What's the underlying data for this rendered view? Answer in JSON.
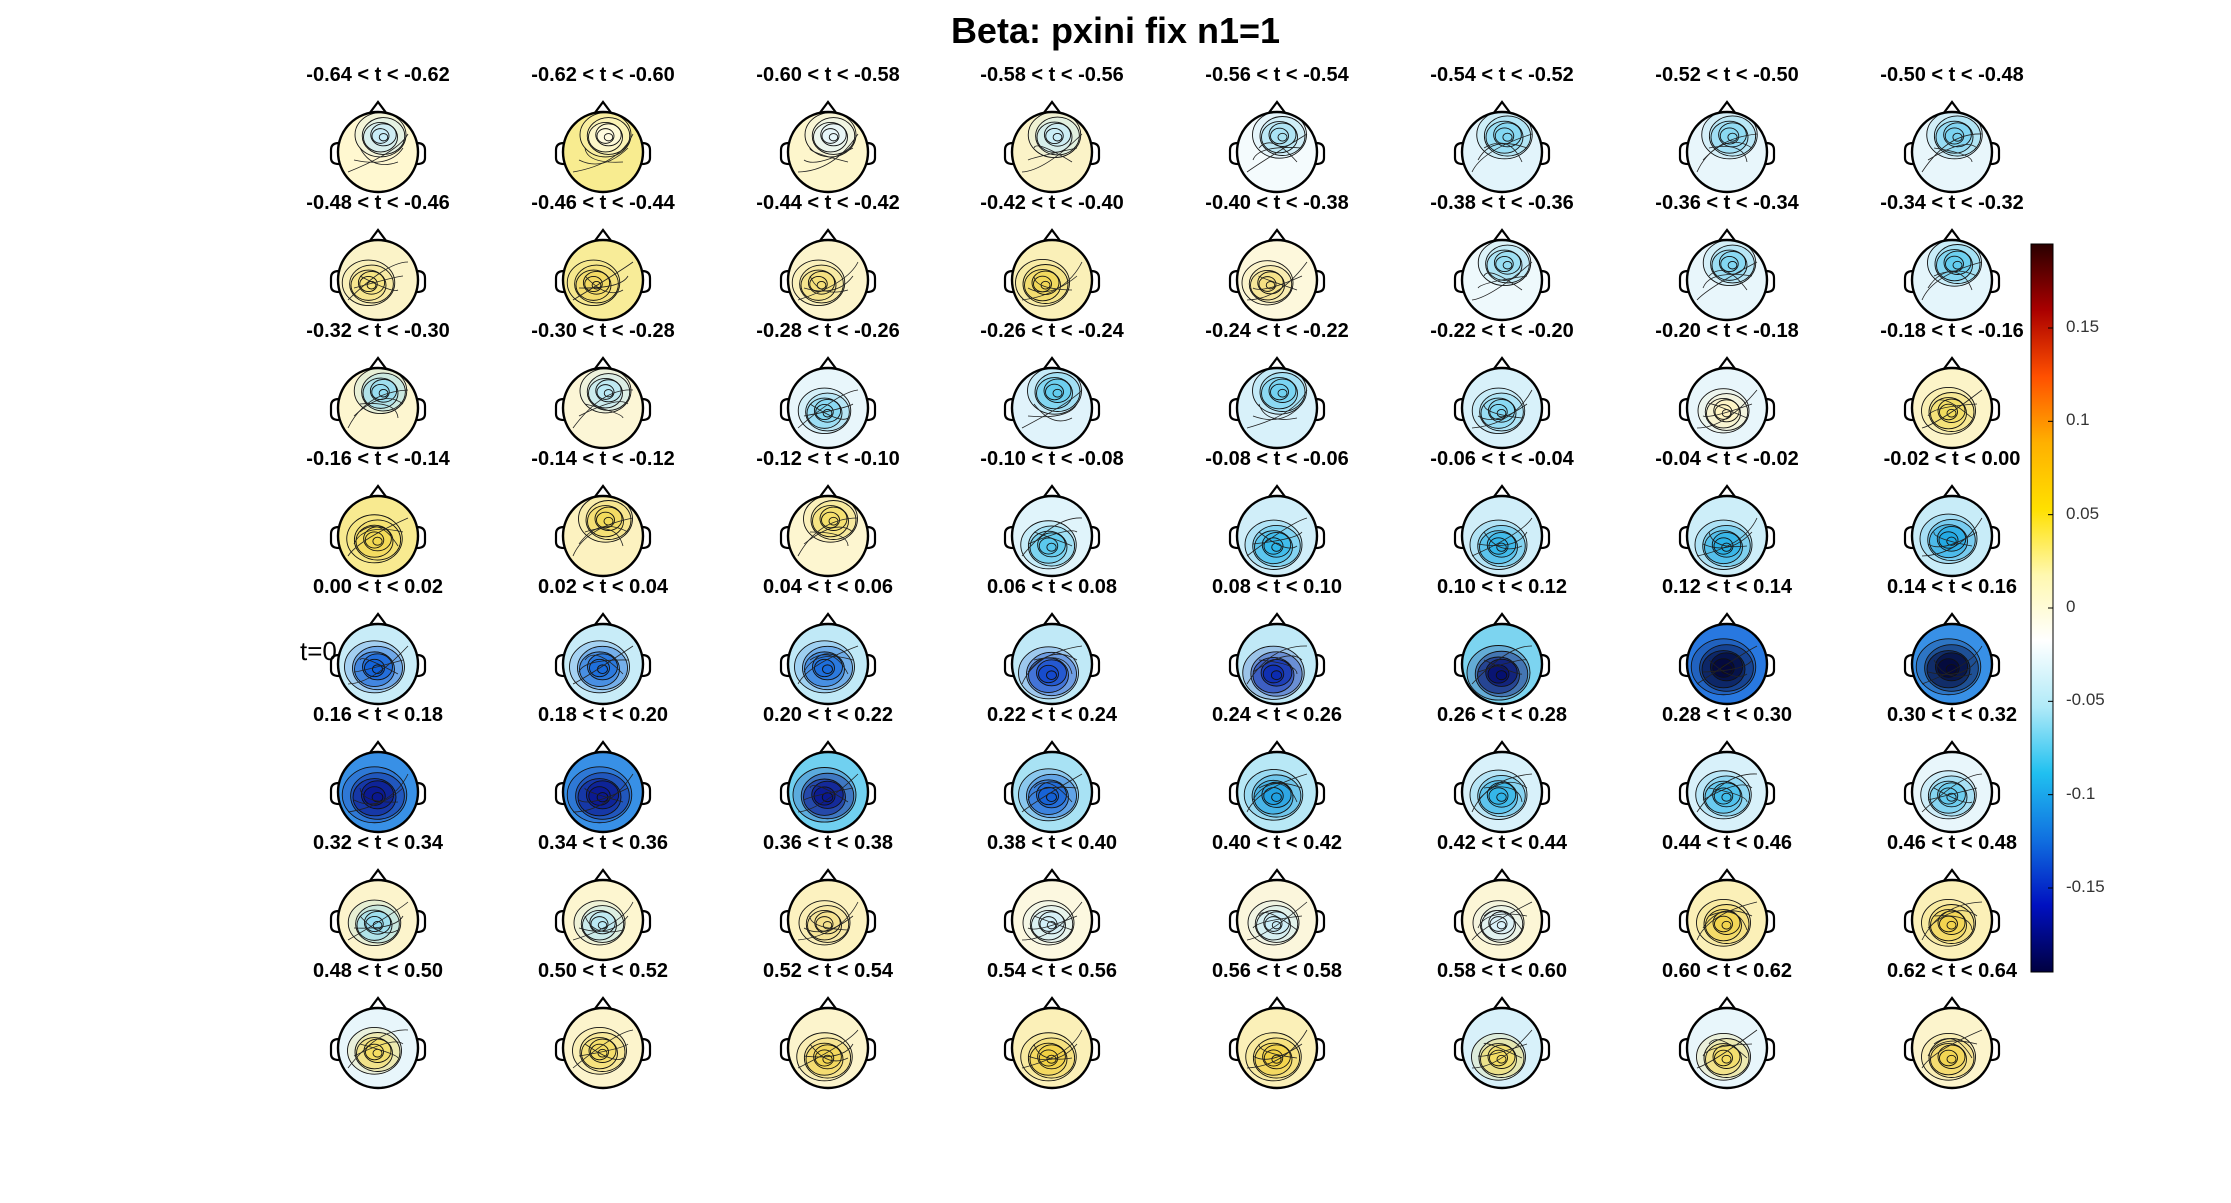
{
  "figure": {
    "title": "Beta: pxini fix  n1=1",
    "marker": "t=0",
    "labels": [
      "-0.64 < t < -0.62",
      "-0.62 < t < -0.60",
      "-0.60 < t < -0.58",
      "-0.58 < t < -0.56",
      "-0.56 < t < -0.54",
      "-0.54 < t < -0.52",
      "-0.52 < t < -0.50",
      "-0.50 < t < -0.48",
      "-0.48 < t < -0.46",
      "-0.46 < t < -0.44",
      "-0.44 < t < -0.42",
      "-0.42 < t < -0.40",
      "-0.40 < t < -0.38",
      "-0.38 < t < -0.36",
      "-0.36 < t < -0.34",
      "-0.34 < t < -0.32",
      "-0.32 < t < -0.30",
      "-0.30 < t < -0.28",
      "-0.28 < t < -0.26",
      "-0.26 < t < -0.24",
      "-0.24 < t < -0.22",
      "-0.22 < t < -0.20",
      "-0.20 < t < -0.18",
      "-0.18 < t < -0.16",
      "-0.16 < t < -0.14",
      "-0.14 < t < -0.12",
      "-0.12 < t < -0.10",
      "-0.10 < t < -0.08",
      "-0.08 < t < -0.06",
      "-0.06 < t < -0.04",
      "-0.04 < t < -0.02",
      "-0.02 < t < 0.00",
      "0.00 < t < 0.02",
      "0.02 < t < 0.04",
      "0.04 < t < 0.06",
      "0.06 < t < 0.08",
      "0.08 < t < 0.10",
      "0.10 < t < 0.12",
      "0.12 < t < 0.14",
      "0.14 < t < 0.16",
      "0.16 < t < 0.18",
      "0.18 < t < 0.20",
      "0.20 < t < 0.22",
      "0.22 < t < 0.24",
      "0.24 < t < 0.26",
      "0.26 < t < 0.28",
      "0.28 < t < 0.30",
      "0.30 < t < 0.32",
      "0.32 < t < 0.34",
      "0.34 < t < 0.36",
      "0.36 < t < 0.38",
      "0.38 < t < 0.40",
      "0.40 < t < 0.42",
      "0.42 < t < 0.44",
      "0.44 < t < 0.46",
      "0.46 < t < 0.48",
      "0.48 < t < 0.50",
      "0.50 < t < 0.52",
      "0.52 < t < 0.54",
      "0.54 < t < 0.56",
      "0.56 < t < 0.58",
      "0.58 < t < 0.60",
      "0.60 < t < 0.62",
      "0.62 < t < 0.64"
    ],
    "maps": [
      {
        "bg": "#fff8d0",
        "blob": "#c8ecf8",
        "blobPos": "front",
        "strength": 0.3
      },
      {
        "bg": "#f8ec90",
        "blob": "#fffbe0",
        "blobPos": "front",
        "strength": 0.3
      },
      {
        "bg": "#fdf6cc",
        "blob": "#e6f6fb",
        "blobPos": "front",
        "strength": 0.3
      },
      {
        "bg": "#fbf3c8",
        "blob": "#c8ecf8",
        "blobPos": "front",
        "strength": 0.35
      },
      {
        "bg": "#f4fbfd",
        "blob": "#a8e2f4",
        "blobPos": "front",
        "strength": 0.4
      },
      {
        "bg": "#e2f4fb",
        "blob": "#80d6f2",
        "blobPos": "front",
        "strength": 0.45
      },
      {
        "bg": "#e8f6fb",
        "blob": "#88d8f2",
        "blobPos": "front",
        "strength": 0.45
      },
      {
        "bg": "#e8f6fb",
        "blob": "#78d2f0",
        "blobPos": "front",
        "strength": 0.45
      },
      {
        "bg": "#fbf3c8",
        "blob": "#f6e27a",
        "blobPos": "left",
        "strength": 0.35
      },
      {
        "bg": "#f8ec98",
        "blob": "#f2d860",
        "blobPos": "left",
        "strength": 0.35
      },
      {
        "bg": "#fcf4cc",
        "blob": "#f4df78",
        "blobPos": "left",
        "strength": 0.35
      },
      {
        "bg": "#faf0b8",
        "blob": "#f0d656",
        "blobPos": "left",
        "strength": 0.4
      },
      {
        "bg": "#fdf8dc",
        "blob": "#f4e080",
        "blobPos": "left",
        "strength": 0.3
      },
      {
        "bg": "#eef9fc",
        "blob": "#94dcf2",
        "blobPos": "front",
        "strength": 0.35
      },
      {
        "bg": "#e8f6fb",
        "blob": "#80d6f2",
        "blobPos": "front",
        "strength": 0.35
      },
      {
        "bg": "#e4f5fb",
        "blob": "#60cbee",
        "blobPos": "front",
        "strength": 0.4
      },
      {
        "bg": "#fdf6d0",
        "blob": "#94dcf2",
        "blobPos": "front",
        "strength": 0.35
      },
      {
        "bg": "#fcf6d6",
        "blob": "#b8e8f6",
        "blobPos": "front",
        "strength": 0.3
      },
      {
        "bg": "#e8f6fb",
        "blob": "#80d6f2",
        "blobPos": "center",
        "strength": 0.35
      },
      {
        "bg": "#e0f3fb",
        "blob": "#60cbee",
        "blobPos": "front",
        "strength": 0.4
      },
      {
        "bg": "#d8f1fa",
        "blob": "#70d0f0",
        "blobPos": "front",
        "strength": 0.4
      },
      {
        "bg": "#d8f1fa",
        "blob": "#80d6f2",
        "blobPos": "center",
        "strength": 0.35
      },
      {
        "bg": "#e8f6fb",
        "blob": "#fff4c0",
        "blobPos": "center",
        "strength": 0.3
      },
      {
        "bg": "#fcf4c8",
        "blob": "#f2dc5c",
        "blobPos": "center",
        "strength": 0.4
      },
      {
        "bg": "#f8ea90",
        "blob": "#f2d850",
        "blobPos": "center",
        "strength": 0.45
      },
      {
        "bg": "#fcf2c0",
        "blob": "#f2da5a",
        "blobPos": "front",
        "strength": 0.4
      },
      {
        "bg": "#fdf6d0",
        "blob": "#f4de68",
        "blobPos": "front",
        "strength": 0.4
      },
      {
        "bg": "#e0f4fb",
        "blob": "#58c8ee",
        "blobPos": "back",
        "strength": 0.45
      },
      {
        "bg": "#d0eef9",
        "blob": "#30b8ea",
        "blobPos": "back",
        "strength": 0.5
      },
      {
        "bg": "#d0eef9",
        "blob": "#30b4e8",
        "blobPos": "back",
        "strength": 0.5
      },
      {
        "bg": "#cdeef9",
        "blob": "#28b0e6",
        "blobPos": "back",
        "strength": 0.5
      },
      {
        "bg": "#c8ecf8",
        "blob": "#20a8e4",
        "blobPos": "center",
        "strength": 0.5
      },
      {
        "bg": "#c8ecf8",
        "blob": "#1060d8",
        "blobPos": "center",
        "strength": 0.6
      },
      {
        "bg": "#c8ecf8",
        "blob": "#1a6cdc",
        "blobPos": "center",
        "strength": 0.6
      },
      {
        "bg": "#c0e9f7",
        "blob": "#1a6cdc",
        "blobPos": "center",
        "strength": 0.6
      },
      {
        "bg": "#c0e9f7",
        "blob": "#1448cc",
        "blobPos": "back",
        "strength": 0.6
      },
      {
        "bg": "#c0e9f7",
        "blob": "#0c2cb0",
        "blobPos": "back",
        "strength": 0.65
      },
      {
        "bg": "#7cd4f0",
        "blob": "#061070",
        "blobPos": "back",
        "strength": 0.7
      },
      {
        "bg": "#2878e0",
        "blob": "#04083a",
        "blobPos": "center",
        "strength": 0.75
      },
      {
        "bg": "#3890e6",
        "blob": "#04083a",
        "blobPos": "center",
        "strength": 0.75
      },
      {
        "bg": "#3890e6",
        "blob": "#0a1890",
        "blobPos": "center",
        "strength": 0.75
      },
      {
        "bg": "#3890e6",
        "blob": "#0a1890",
        "blobPos": "center",
        "strength": 0.75
      },
      {
        "bg": "#70d0f0",
        "blob": "#0a1890",
        "blobPos": "center",
        "strength": 0.7
      },
      {
        "bg": "#a8e2f4",
        "blob": "#1460d6",
        "blobPos": "center",
        "strength": 0.6
      },
      {
        "bg": "#b8e8f6",
        "blob": "#20a0e2",
        "blobPos": "center",
        "strength": 0.55
      },
      {
        "bg": "#d8f1fa",
        "blob": "#30b4e8",
        "blobPos": "center",
        "strength": 0.5
      },
      {
        "bg": "#d8f1fa",
        "blob": "#40bcea",
        "blobPos": "center",
        "strength": 0.45
      },
      {
        "bg": "#e8f6fb",
        "blob": "#60c8ee",
        "blobPos": "center",
        "strength": 0.45
      },
      {
        "bg": "#fcf4cc",
        "blob": "#94dcf2",
        "blobPos": "center",
        "strength": 0.35
      },
      {
        "bg": "#fdf6d0",
        "blob": "#b8e8f6",
        "blobPos": "center",
        "strength": 0.3
      },
      {
        "bg": "#fcf2c0",
        "blob": "#f4e08a",
        "blobPos": "center",
        "strength": 0.3
      },
      {
        "bg": "#fcf8e0",
        "blob": "#d0eef9",
        "blobPos": "center",
        "strength": 0.3
      },
      {
        "bg": "#fbf6dc",
        "blob": "#c8ecf8",
        "blobPos": "center",
        "strength": 0.3
      },
      {
        "bg": "#fcf6d6",
        "blob": "#d8f1fa",
        "blobPos": "center",
        "strength": 0.3
      },
      {
        "bg": "#fbf0b8",
        "blob": "#f2d44c",
        "blobPos": "center",
        "strength": 0.4
      },
      {
        "bg": "#fbf0b8",
        "blob": "#f2d44c",
        "blobPos": "center",
        "strength": 0.4
      },
      {
        "bg": "#e8f6fb",
        "blob": "#f4dc60",
        "blobPos": "center",
        "strength": 0.4
      },
      {
        "bg": "#fcf4cc",
        "blob": "#f4dc60",
        "blobPos": "center",
        "strength": 0.4
      },
      {
        "bg": "#fcf4cc",
        "blob": "#f2d450",
        "blobPos": "back",
        "strength": 0.45
      },
      {
        "bg": "#fbf0b8",
        "blob": "#f2d040",
        "blobPos": "back",
        "strength": 0.45
      },
      {
        "bg": "#fbf0b8",
        "blob": "#f2d040",
        "blobPos": "back",
        "strength": 0.45
      },
      {
        "bg": "#d8f1fa",
        "blob": "#f4dc60",
        "blobPos": "back",
        "strength": 0.4
      },
      {
        "bg": "#e8f6fb",
        "blob": "#f4dc60",
        "blobPos": "back",
        "strength": 0.4
      },
      {
        "bg": "#fcf4cc",
        "blob": "#f2d450",
        "blobPos": "back",
        "strength": 0.4
      }
    ],
    "colorbar": {
      "min": -0.195,
      "max": 0.195,
      "ticks": [
        {
          "value": 0.15,
          "label": "0.15"
        },
        {
          "value": 0.1,
          "label": "0.1"
        },
        {
          "value": 0.05,
          "label": "0.05"
        },
        {
          "value": 0,
          "label": "0"
        },
        {
          "value": -0.05,
          "label": "-0.05"
        },
        {
          "value": -0.1,
          "label": "-0.1"
        },
        {
          "value": -0.15,
          "label": "-0.15"
        }
      ],
      "stops": [
        "#2a0000",
        "#aa0000",
        "#ff5000",
        "#ffb000",
        "#ffe000",
        "#fff8b0",
        "#ffffff",
        "#b0eaf8",
        "#20c0f0",
        "#1070e0",
        "#0010c0",
        "#000040"
      ]
    }
  }
}
